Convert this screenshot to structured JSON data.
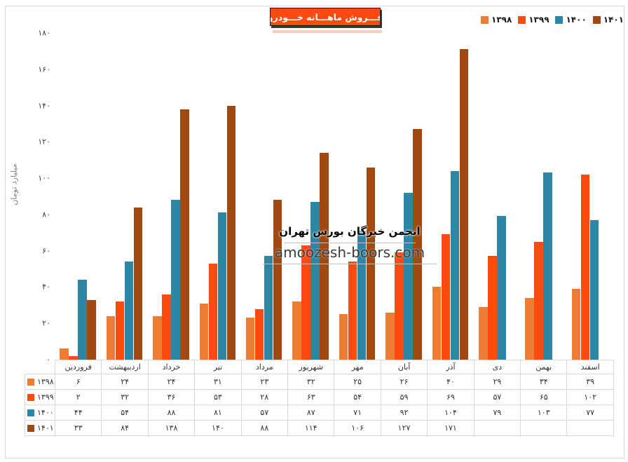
{
  "title": {
    "text": "فـــروش ماهـــانه خـــودرو"
  },
  "y_axis": {
    "title": "میلیارد تومان",
    "ticks": [
      {
        "value": 0,
        "label": "۰"
      },
      {
        "value": 20,
        "label": "۲۰"
      },
      {
        "value": 40,
        "label": "۴۰"
      },
      {
        "value": 60,
        "label": "۶۰"
      },
      {
        "value": 80,
        "label": "۸۰"
      },
      {
        "value": 100,
        "label": "۱۰۰"
      },
      {
        "value": 120,
        "label": "۱۲۰"
      },
      {
        "value": 140,
        "label": "۱۴۰"
      },
      {
        "value": 160,
        "label": "۱۶۰"
      },
      {
        "value": 180,
        "label": "۱۸۰"
      }
    ]
  },
  "watermark": {
    "line1": "انجمن خبرگان بورس تهران",
    "line2": "amoozesh-boors.com"
  },
  "chart_data": {
    "type": "bar",
    "title": "فروش ماهانه خودرو",
    "xlabel": "",
    "ylabel": "میلیارد تومان",
    "ylim": [
      0,
      180
    ],
    "grid": false,
    "legend_position": "top-right",
    "data_table": true,
    "categories": [
      "فروردین",
      "اردیبهشت",
      "خرداد",
      "تیر",
      "مرداد",
      "شهریور",
      "مهر",
      "آبان",
      "آذر",
      "دی",
      "بهمن",
      "اسفند"
    ],
    "series": [
      {
        "name": "۱۳۹۸",
        "color": "#EC7D33",
        "values": [
          6,
          24,
          24,
          31,
          23,
          32,
          25,
          26,
          40,
          29,
          34,
          39
        ],
        "display": [
          "۶",
          "۲۴",
          "۲۴",
          "۳۱",
          "۲۳",
          "۳۲",
          "۲۵",
          "۲۶",
          "۴۰",
          "۲۹",
          "۳۴",
          "۳۹"
        ]
      },
      {
        "name": "۱۳۹۹",
        "color": "#FC4A10",
        "values": [
          2,
          32,
          36,
          53,
          28,
          63,
          54,
          59,
          69,
          57,
          65,
          102
        ],
        "display": [
          "۲",
          "۳۲",
          "۳۶",
          "۵۳",
          "۲۸",
          "۶۳",
          "۵۴",
          "۵۹",
          "۶۹",
          "۵۷",
          "۶۵",
          "۱۰۲"
        ]
      },
      {
        "name": "۱۴۰۰",
        "color": "#2E86A5",
        "values": [
          44,
          54,
          88,
          81,
          57,
          87,
          71,
          92,
          104,
          79,
          103,
          77
        ],
        "display": [
          "۴۴",
          "۵۴",
          "۸۸",
          "۸۱",
          "۵۷",
          "۸۷",
          "۷۱",
          "۹۲",
          "۱۰۴",
          "۷۹",
          "۱۰۳",
          "۷۷"
        ]
      },
      {
        "name": "۱۴۰۱",
        "color": "#A04A12",
        "values": [
          33,
          84,
          138,
          140,
          88,
          114,
          106,
          127,
          171,
          null,
          null,
          null
        ],
        "display": [
          "۳۳",
          "۸۴",
          "۱۳۸",
          "۱۴۰",
          "۸۸",
          "۱۱۴",
          "۱۰۶",
          "۱۲۷",
          "۱۷۱",
          "",
          "",
          ""
        ]
      }
    ]
  }
}
